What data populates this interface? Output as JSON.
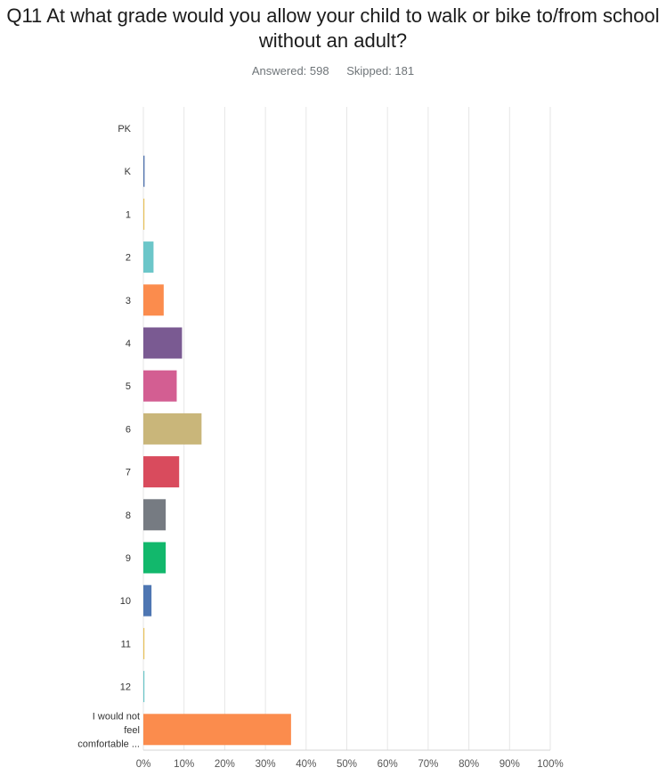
{
  "header": {
    "title": "Q11 At what grade would you allow your child to walk or bike to/from school without an adult?",
    "answered": "Answered: 598",
    "skipped": "Skipped: 181"
  },
  "chart_data": {
    "type": "bar",
    "orientation": "horizontal",
    "categories": [
      "PK",
      "K",
      "1",
      "2",
      "3",
      "4",
      "5",
      "6",
      "7",
      "8",
      "9",
      "10",
      "11",
      "12",
      "I would not feel comfortable ..."
    ],
    "category_display": [
      "PK",
      "K",
      "1",
      "2",
      "3",
      "4",
      "5",
      "6",
      "7",
      "8",
      "9",
      "10",
      "11",
      "12",
      [
        "I would not",
        "feel",
        "comfortable ..."
      ]
    ],
    "values": [
      0.0,
      0.3,
      0.2,
      2.5,
      5.0,
      9.5,
      8.2,
      14.3,
      8.8,
      5.5,
      5.5,
      2.0,
      0.2,
      0.2,
      36.3
    ],
    "colors": [
      "#4a90c2",
      "#5577b0",
      "#e8c25a",
      "#6cc6c9",
      "#fb8c4d",
      "#7a5a92",
      "#d35e92",
      "#c9b67a",
      "#d94b5d",
      "#767b82",
      "#12b86c",
      "#4e76b2",
      "#e8c25a",
      "#6cc6c9",
      "#fb8c4d"
    ],
    "xlim": [
      0,
      100
    ],
    "x_ticks": [
      "0%",
      "10%",
      "20%",
      "30%",
      "40%",
      "50%",
      "60%",
      "70%",
      "80%",
      "90%",
      "100%"
    ],
    "unit": "%",
    "grid": true,
    "title": "Q11 At what grade would you allow your child to walk or bike to/from school without an adult?",
    "xlabel": "",
    "ylabel": ""
  }
}
